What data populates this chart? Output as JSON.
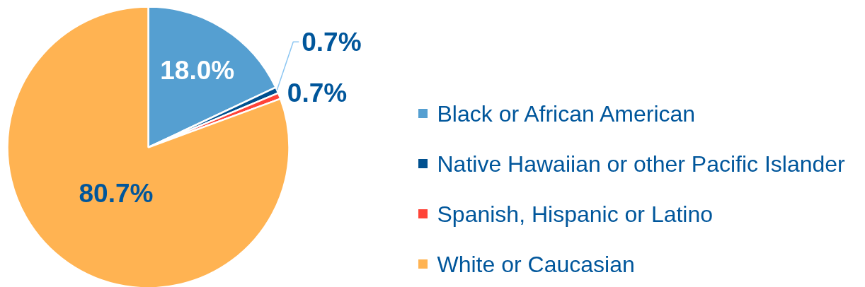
{
  "chart_data": {
    "type": "pie",
    "categories": [
      "Black or African American",
      "Native Hawaiian or other Pacific Islander",
      "Spanish, Hispanic or Latino",
      "White or Caucasian"
    ],
    "values": [
      18.0,
      0.7,
      0.7,
      80.7
    ],
    "colors": [
      "#559fd1",
      "#00508f",
      "#ff4438",
      "#ffb352"
    ],
    "value_labels": [
      "18.0%",
      "0.7%",
      "0.7%",
      "80.7%"
    ],
    "legend": "right"
  }
}
